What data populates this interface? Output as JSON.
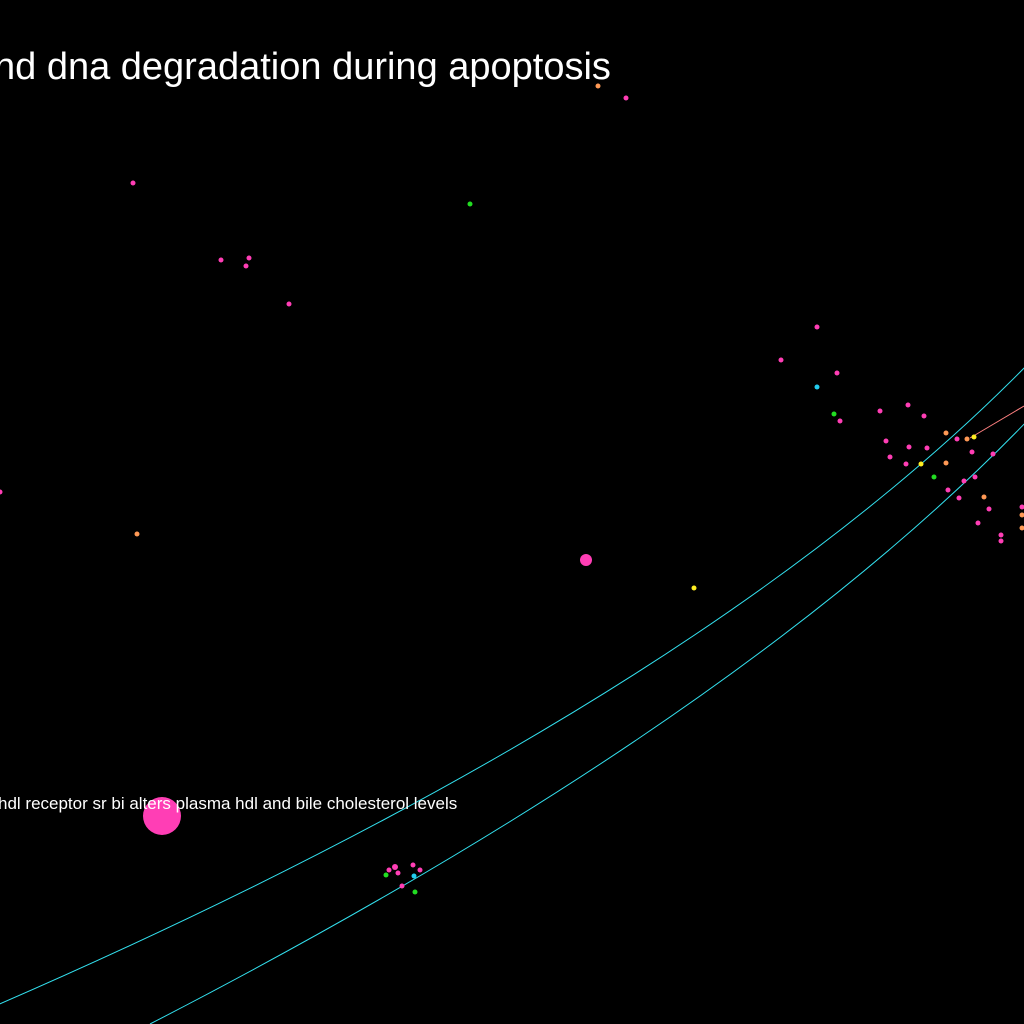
{
  "labels": {
    "title": "nd dna degradation during apoptosis",
    "node": "hdl receptor sr bi alters plasma hdl and bile cholesterol levels"
  },
  "colors": {
    "background": "#000000",
    "text": "#ffffff",
    "curve": "#33e0ee",
    "edge": "#ff8080",
    "pink": "#ff3eb5",
    "orange": "#ff9955",
    "green": "#22dd22",
    "cyan": "#22ccee",
    "yellow": "#ffee22"
  }
}
